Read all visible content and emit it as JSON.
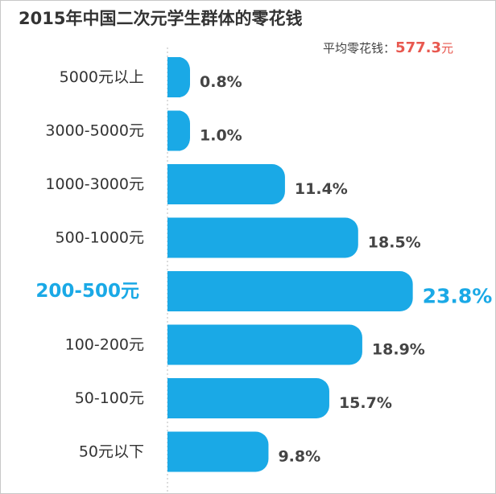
{
  "chart_data": {
    "type": "bar",
    "orientation": "horizontal",
    "title": "2015年中国二次元学生群体的零花钱",
    "annotation": {
      "label": "平均零花钱：",
      "value": "577.3",
      "unit": "元"
    },
    "categories": [
      "5000元以上",
      "3000-5000元",
      "1000-3000元",
      "500-1000元",
      "200-500元",
      "100-200元",
      "50-100元",
      "50元以下"
    ],
    "values": [
      0.8,
      1.0,
      11.4,
      18.5,
      23.8,
      18.9,
      15.7,
      9.8
    ],
    "value_labels": [
      "0.8%",
      "1.0%",
      "11.4%",
      "18.5%",
      "23.8%",
      "18.9%",
      "15.7%",
      "9.8%"
    ],
    "highlight_index": 4,
    "xlim": [
      0,
      25
    ],
    "grid": false,
    "legend": "none",
    "colors": {
      "bar": "#1aa9e6",
      "highlight_text": "#1aa9e6",
      "average_value": "#e8584f",
      "axis_line": "#bbbbbb"
    }
  }
}
